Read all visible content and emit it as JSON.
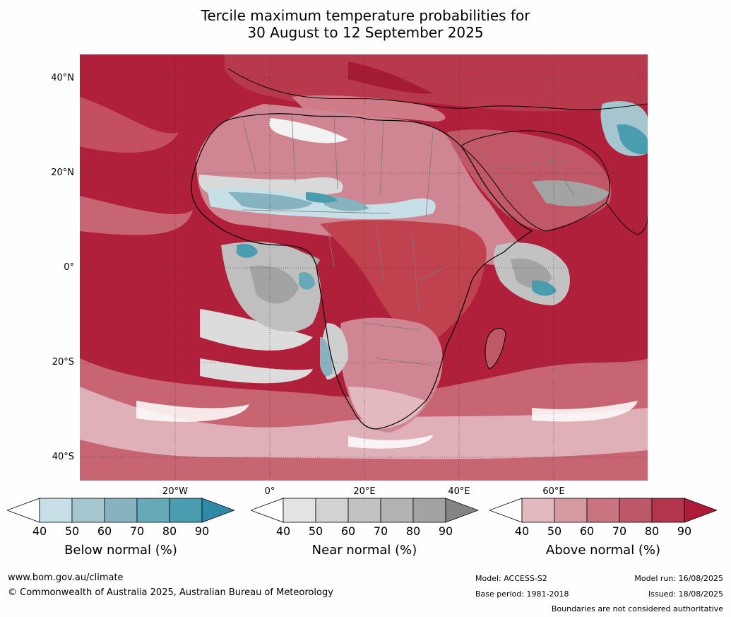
{
  "title": {
    "line1": "Tercile maximum temperature probabilities for",
    "line2": "30 August to 12 September 2025"
  },
  "map": {
    "region": "Africa",
    "lat_labels": [
      "40°N",
      "20°N",
      "0°",
      "20°S",
      "40°S"
    ],
    "lon_labels": [
      "20°W",
      "0°",
      "20°E",
      "40°E",
      "60°E"
    ],
    "colors": {
      "ocean_dominant": "#b0203a",
      "coast_lines": "#000000",
      "borders": "#7a7a7a",
      "gridlines": "#333333"
    }
  },
  "colorbars": [
    {
      "title": "Below normal (%)",
      "ticks": [
        "40",
        "50",
        "60",
        "70",
        "80",
        "90"
      ],
      "colors": [
        "#ffffff",
        "#c7e0e7",
        "#a5c6cf",
        "#86b3bf",
        "#67a9b7",
        "#4a9caf",
        "#2e8aa6"
      ]
    },
    {
      "title": "Near normal (%)",
      "ticks": [
        "40",
        "50",
        "60",
        "70",
        "80",
        "90"
      ],
      "colors": [
        "#ffffff",
        "#e3e3e3",
        "#d2d2d2",
        "#c2c2c2",
        "#b3b3b3",
        "#a3a3a3",
        "#858585"
      ]
    },
    {
      "title": "Above normal (%)",
      "ticks": [
        "40",
        "50",
        "60",
        "70",
        "80",
        "90"
      ],
      "colors": [
        "#ffffff",
        "#e1b9bf",
        "#d69aa3",
        "#c97580",
        "#bd5868",
        "#b3354b",
        "#ae1a37"
      ]
    }
  ],
  "footer": {
    "website": "www.bom.gov.au/climate",
    "copyright": "© Commonwealth of Australia 2025, Australian Bureau of Meteorology",
    "model": "Model: ACCESS-S2",
    "base_period": "Base period: 1981-2018",
    "model_run": "Model run: 16/08/2025",
    "issued": "Issued: 18/08/2025",
    "disclaimer": "Boundaries are not considered authoritative"
  }
}
